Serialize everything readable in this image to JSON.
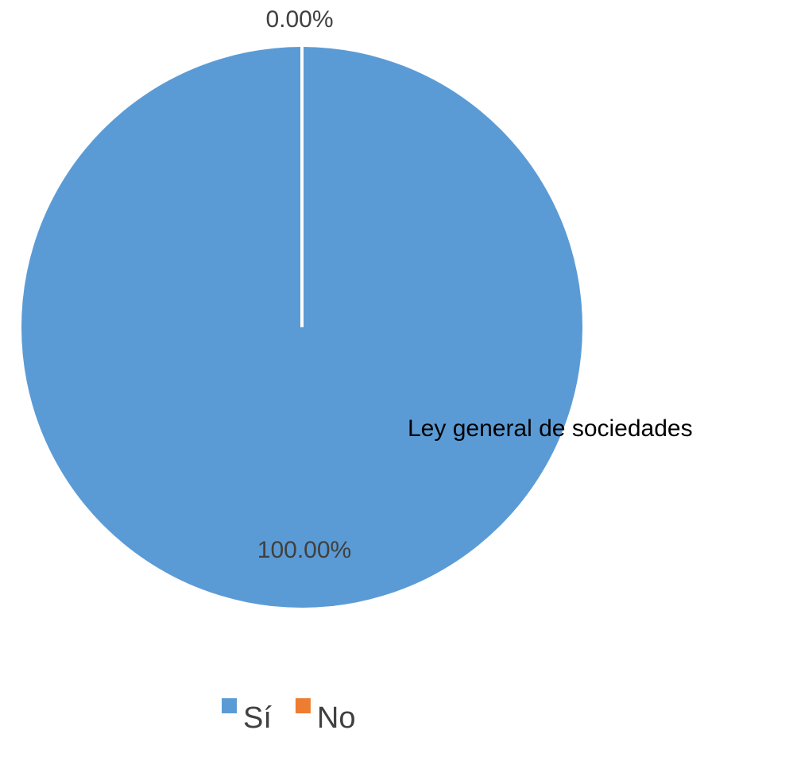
{
  "chart_data": {
    "type": "pie",
    "title": "",
    "categories": [
      "Sí",
      "No"
    ],
    "values": [
      100.0,
      0.0
    ],
    "data_labels": [
      "100.00%",
      "0.00%"
    ],
    "colors": [
      "#5B9BD5",
      "#ED7D31"
    ],
    "annotation": "Ley general de sociedades",
    "legend": {
      "position": "bottom",
      "entries": [
        "Sí",
        "No"
      ]
    }
  }
}
